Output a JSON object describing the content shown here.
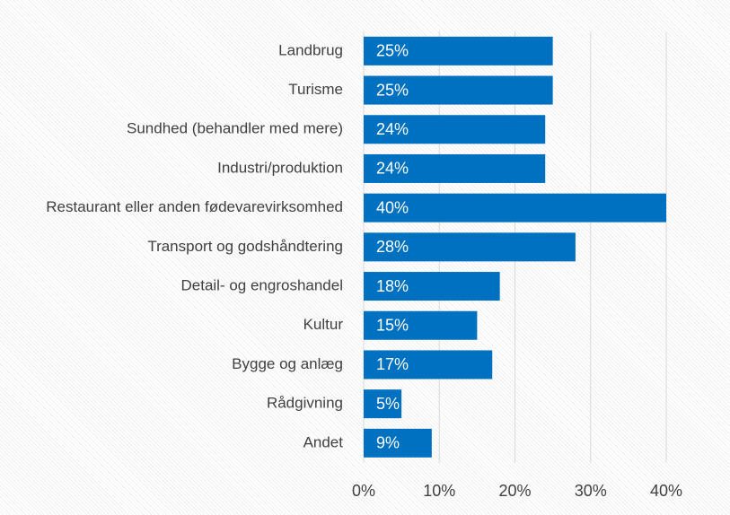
{
  "chart_data": {
    "type": "barh",
    "categories": [
      "Landbrug",
      "Turisme",
      "Sundhed (behandler med mere)",
      "Industri/produktion",
      "Restaurant eller anden fødevarevirksomhed",
      "Transport og godshåndtering",
      "Detail- og engroshandel",
      "Kultur",
      "Bygge og anlæg",
      "Rådgivning",
      "Andet"
    ],
    "values": [
      25,
      25,
      24,
      24,
      40,
      28,
      18,
      15,
      17,
      5,
      9
    ],
    "value_labels": [
      "25%",
      "25%",
      "24%",
      "24%",
      "40%",
      "28%",
      "18%",
      "15%",
      "17%",
      "5%",
      "9%"
    ],
    "color": "#0070c0",
    "xlim": [
      0,
      40
    ],
    "xticks": [
      {
        "value": 0,
        "label": "0%"
      },
      {
        "value": 10,
        "label": "10%"
      },
      {
        "value": 20,
        "label": "20%"
      },
      {
        "value": 30,
        "label": "30%"
      },
      {
        "value": 40,
        "label": "40%"
      }
    ],
    "grid": true
  }
}
